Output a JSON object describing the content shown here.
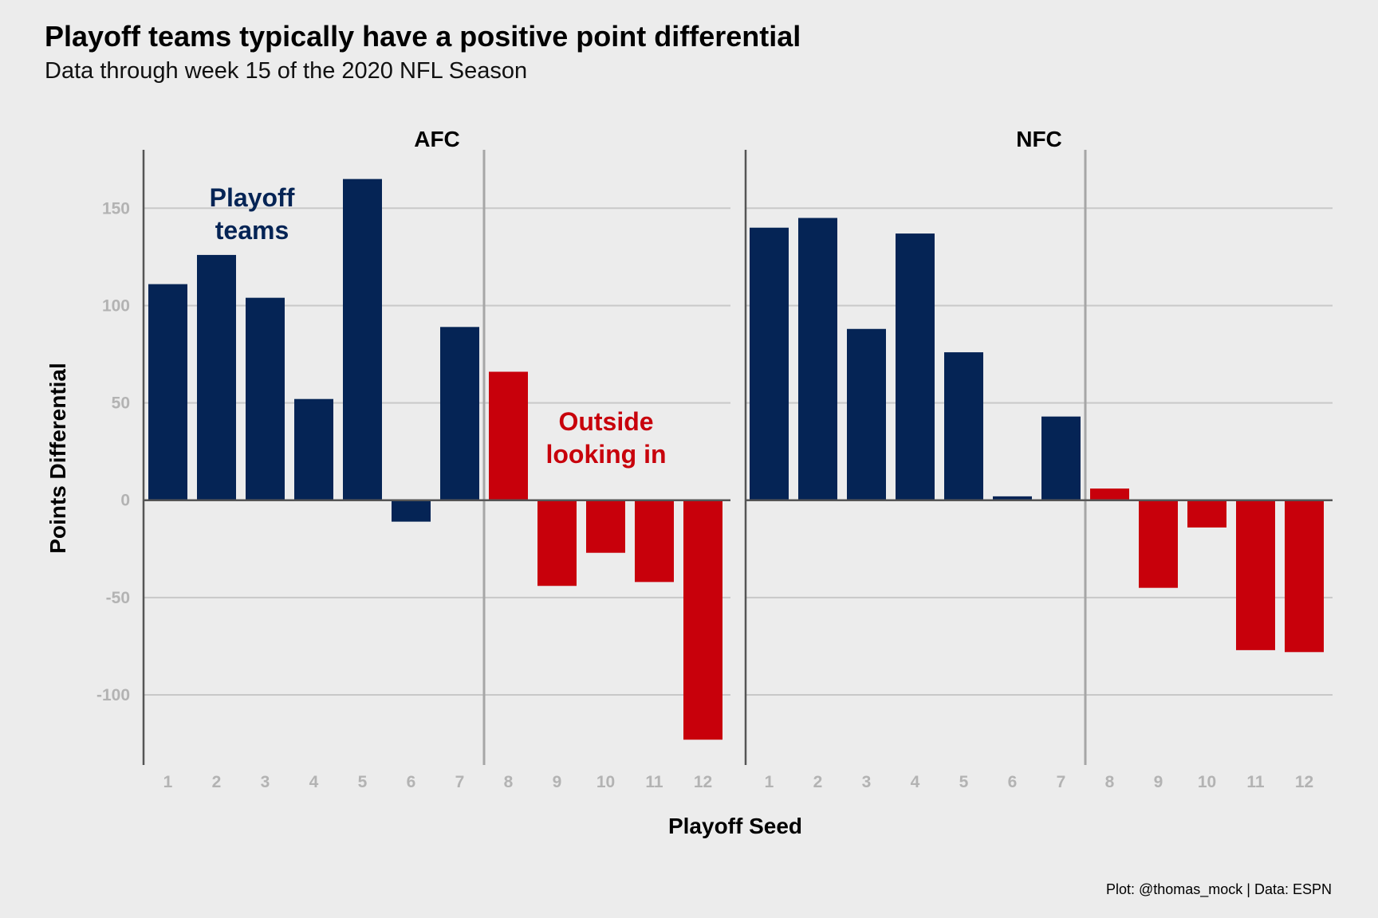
{
  "chart_data": {
    "type": "bar",
    "title": "Playoff teams typically have a positive point differential",
    "subtitle": "Data through week 15 of the 2020 NFL Season",
    "xlabel": "Playoff Seed",
    "ylabel": "Points Differential",
    "caption": "Plot: @thomas_mock | Data: ESPN",
    "ylim": [
      -136,
      180
    ],
    "yticks": [
      -100,
      -50,
      0,
      50,
      100,
      150
    ],
    "ytick_labels": [
      "-100",
      "-50",
      "0",
      "50",
      "100",
      "150"
    ],
    "categories": [
      "1",
      "2",
      "3",
      "4",
      "5",
      "6",
      "7",
      "8",
      "9",
      "10",
      "11",
      "12"
    ],
    "playoff_cutoff_seed": 7,
    "grid": true,
    "colors": {
      "playoff": "#052455",
      "outside": "#c8000b",
      "cutoff_line": "#a6a6a6",
      "axis": "#555555"
    },
    "annotations": {
      "playoff": [
        "Playoff",
        "teams"
      ],
      "outside": [
        "Outside",
        "looking in"
      ]
    },
    "facets": [
      {
        "name": "AFC",
        "values": [
          111,
          126,
          104,
          52,
          165,
          -11,
          89,
          66,
          -44,
          -27,
          -42,
          -123
        ]
      },
      {
        "name": "NFC",
        "values": [
          140,
          145,
          88,
          137,
          76,
          2,
          43,
          6,
          -45,
          -14,
          -77,
          -78
        ]
      }
    ]
  }
}
